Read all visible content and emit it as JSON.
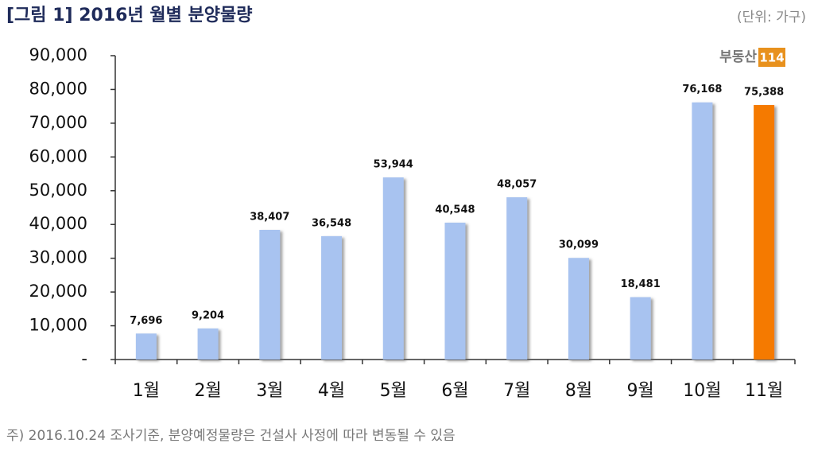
{
  "chart_data": {
    "type": "bar",
    "title": "[그림 1] 2016년 월별 분양물량",
    "unit_label": "(단위: 가구)",
    "logo_text": "부동산",
    "logo_badge": "114",
    "footnote": "주) 2016.10.24 조사기준, 분양예정물량은 건설사 사정에 따라 변동될 수 있음",
    "categories": [
      "1월",
      "2월",
      "3월",
      "4월",
      "5월",
      "6월",
      "7월",
      "8월",
      "9월",
      "10월",
      "11월"
    ],
    "values": [
      7696,
      9204,
      38407,
      36548,
      53944,
      40548,
      48057,
      30099,
      18481,
      76168,
      75388
    ],
    "value_labels": [
      "7,696",
      "9,204",
      "38,407",
      "36,548",
      "53,944",
      "40,548",
      "48,057",
      "30,099",
      "18,481",
      "76,168",
      "75,388"
    ],
    "colors": [
      "#a8c3f0",
      "#a8c3f0",
      "#a8c3f0",
      "#a8c3f0",
      "#a8c3f0",
      "#a8c3f0",
      "#a8c3f0",
      "#a8c3f0",
      "#a8c3f0",
      "#a8c3f0",
      "#f57a00"
    ],
    "ylim": [
      0,
      90000
    ],
    "yticks": [
      {
        "value": 0,
        "label": "-"
      },
      {
        "value": 10000,
        "label": "10,000"
      },
      {
        "value": 20000,
        "label": "20,000"
      },
      {
        "value": 30000,
        "label": "30,000"
      },
      {
        "value": 40000,
        "label": "40,000"
      },
      {
        "value": 50000,
        "label": "50,000"
      },
      {
        "value": 60000,
        "label": "60,000"
      },
      {
        "value": 70000,
        "label": "70,000"
      },
      {
        "value": 80000,
        "label": "80,000"
      },
      {
        "value": 90000,
        "label": "90,000"
      }
    ]
  }
}
